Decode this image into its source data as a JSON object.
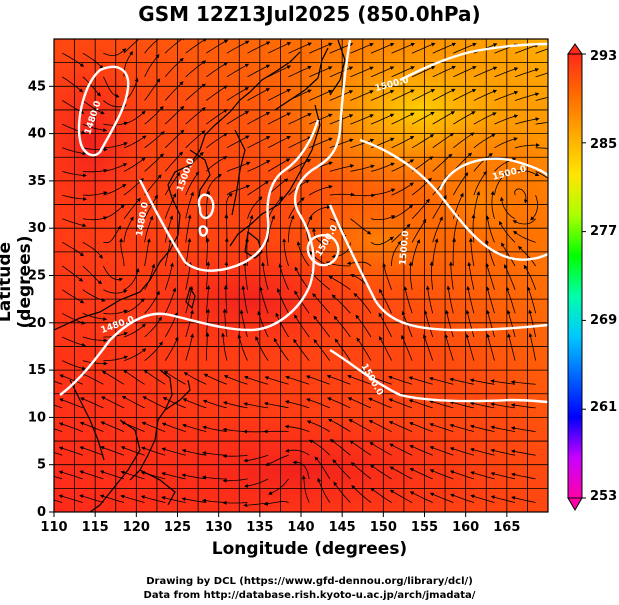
{
  "title": "GSM 12Z13Jul2025 (850.0hPa)",
  "axes": {
    "xlabel": "Longitude (degrees)",
    "ylabel": "Latitude  (degrees)",
    "xticks": [
      "110",
      "115",
      "120",
      "125",
      "130",
      "135",
      "140",
      "145",
      "150",
      "155",
      "160",
      "165"
    ],
    "yticks": [
      "0",
      "5",
      "10",
      "15",
      "20",
      "25",
      "30",
      "35",
      "40",
      "45"
    ]
  },
  "colorbar": {
    "labels": [
      "293",
      "285",
      "277",
      "269",
      "261",
      "253"
    ],
    "stops": [
      "#ff00a8",
      "#c800ff",
      "#0000ff",
      "#0064ff",
      "#00c8ff",
      "#00ffaa",
      "#00ff00",
      "#aaff00",
      "#ffe600",
      "#ffaa00",
      "#ff6a00",
      "#ff2a1a"
    ]
  },
  "contour_labels": [
    "1480.0",
    "1480.0",
    "1480.0",
    "1500.0",
    "1500.0",
    "1500.0",
    "1500.0",
    "1500.0",
    "1500.0"
  ],
  "credits": {
    "line1": "Drawing by DCL (https://www.gfd-dennou.org/library/dcl/)",
    "line2": "Data from http://database.rish.kyoto-u.ac.jp/arch/jmadata/"
  }
}
